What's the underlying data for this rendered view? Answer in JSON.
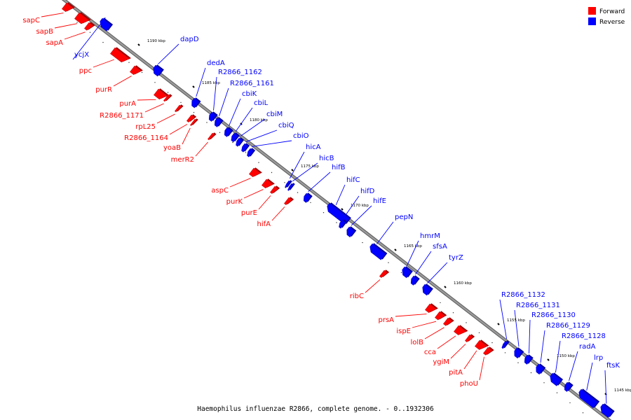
{
  "caption": "Haemophilus influenzae R2866, complete genome. - 0..1932306",
  "legend": [
    {
      "label": "Forward",
      "color": "#ff0000"
    },
    {
      "label": "Reverse",
      "color": "#0000ff"
    }
  ],
  "colors": {
    "forward": "#ff0000",
    "reverse": "#0000ff",
    "axis": "#9a9a9a"
  },
  "ticks": [
    {
      "label": "1190 kbp",
      "kbp": 1190
    },
    {
      "label": "1185 kbp",
      "kbp": 1185
    },
    {
      "label": "1180 kbp",
      "kbp": 1180
    },
    {
      "label": "1175 kbp",
      "kbp": 1175
    },
    {
      "label": "1170 kbp",
      "kbp": 1170
    },
    {
      "label": "1165 kbp",
      "kbp": 1165
    },
    {
      "label": "1160 kbp",
      "kbp": 1160
    },
    {
      "label": "1155 kbp",
      "kbp": 1155
    },
    {
      "label": "1150 kbp",
      "kbp": 1150
    },
    {
      "label": "1145 kbp",
      "kbp": 1145
    }
  ],
  "genes": [
    {
      "name": "sapC",
      "strand": "forward"
    },
    {
      "name": "sapB",
      "strand": "forward"
    },
    {
      "name": "sapA",
      "strand": "forward"
    },
    {
      "name": "ycjX",
      "strand": "reverse"
    },
    {
      "name": "dapD",
      "strand": "reverse"
    },
    {
      "name": "ppc",
      "strand": "forward"
    },
    {
      "name": "purR",
      "strand": "forward"
    },
    {
      "name": "dedA",
      "strand": "reverse"
    },
    {
      "name": "R2866_1162",
      "strand": "reverse"
    },
    {
      "name": "R2866_1161",
      "strand": "reverse"
    },
    {
      "name": "purA",
      "strand": "forward"
    },
    {
      "name": "cbiK",
      "strand": "reverse"
    },
    {
      "name": "R2866_1171",
      "strand": "forward"
    },
    {
      "name": "cbiL",
      "strand": "reverse"
    },
    {
      "name": "rpL25",
      "strand": "forward"
    },
    {
      "name": "cbiM",
      "strand": "reverse"
    },
    {
      "name": "R2866_1164",
      "strand": "forward"
    },
    {
      "name": "cbiQ",
      "strand": "reverse"
    },
    {
      "name": "yoaB",
      "strand": "forward"
    },
    {
      "name": "cbiO",
      "strand": "reverse"
    },
    {
      "name": "merR2",
      "strand": "forward"
    },
    {
      "name": "hicA",
      "strand": "reverse"
    },
    {
      "name": "hicB",
      "strand": "reverse"
    },
    {
      "name": "hifB",
      "strand": "reverse"
    },
    {
      "name": "aspC",
      "strand": "forward"
    },
    {
      "name": "hifC",
      "strand": "reverse"
    },
    {
      "name": "purK",
      "strand": "forward"
    },
    {
      "name": "hifD",
      "strand": "reverse"
    },
    {
      "name": "purE",
      "strand": "forward"
    },
    {
      "name": "hifE",
      "strand": "reverse"
    },
    {
      "name": "hifA",
      "strand": "forward"
    },
    {
      "name": "pepN",
      "strand": "reverse"
    },
    {
      "name": "hmrM",
      "strand": "reverse"
    },
    {
      "name": "sfsA",
      "strand": "reverse"
    },
    {
      "name": "tyrZ",
      "strand": "reverse"
    },
    {
      "name": "ribC",
      "strand": "forward"
    },
    {
      "name": "R2866_1132",
      "strand": "reverse"
    },
    {
      "name": "R2866_1131",
      "strand": "reverse"
    },
    {
      "name": "R2866_1130",
      "strand": "reverse"
    },
    {
      "name": "prsA",
      "strand": "forward"
    },
    {
      "name": "R2866_1129",
      "strand": "reverse"
    },
    {
      "name": "ispE",
      "strand": "forward"
    },
    {
      "name": "R2866_1128",
      "strand": "reverse"
    },
    {
      "name": "lolB",
      "strand": "forward"
    },
    {
      "name": "radA",
      "strand": "reverse"
    },
    {
      "name": "cca",
      "strand": "forward"
    },
    {
      "name": "lrp",
      "strand": "reverse"
    },
    {
      "name": "ygiM",
      "strand": "forward"
    },
    {
      "name": "ftsK",
      "strand": "reverse"
    },
    {
      "name": "pitA",
      "strand": "forward"
    },
    {
      "name": "phoU",
      "strand": "forward"
    }
  ]
}
